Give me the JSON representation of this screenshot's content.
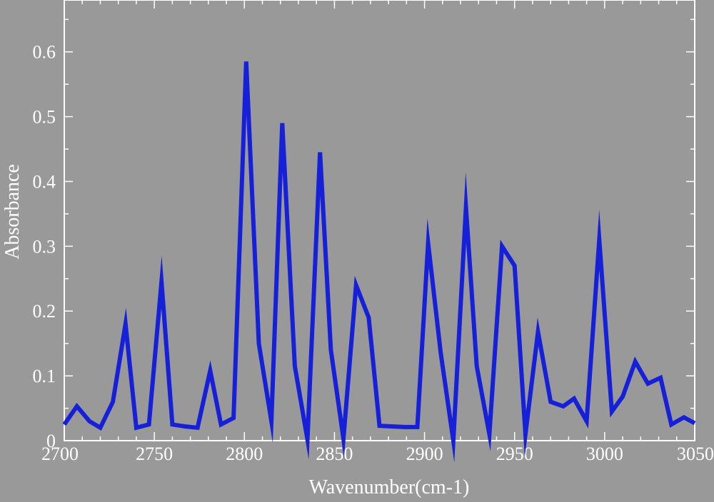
{
  "colors": {
    "background": "#999999",
    "axes": "#ffffff",
    "line": "#1620d8"
  },
  "chart_data": {
    "type": "line",
    "title": "",
    "xlabel": "Wavenumber(cm-1)",
    "ylabel": "Absorbance",
    "xlim": [
      2700,
      3050
    ],
    "ylim": [
      0,
      0.68
    ],
    "grid": false,
    "x_ticks": [
      2700,
      2750,
      2800,
      2850,
      2900,
      2950,
      3000,
      3050
    ],
    "y_ticks": [
      0,
      0.1,
      0.2,
      0.3,
      0.4,
      0.5,
      0.6
    ],
    "y_tick_labels": [
      "0",
      "0.1",
      "0.2",
      "0.3",
      "0.4",
      "0.5",
      "0.6"
    ],
    "series": [
      {
        "x": [
          2700,
          2707,
          2714,
          2720,
          2727,
          2734,
          2740,
          2747,
          2754,
          2760,
          2767,
          2774,
          2781,
          2787,
          2794,
          2801,
          2808,
          2815,
          2821,
          2828,
          2835,
          2842,
          2848,
          2855,
          2862,
          2869,
          2875,
          2882,
          2889,
          2896,
          2902,
          2909,
          2916,
          2923,
          2929,
          2936,
          2943,
          2950,
          2956,
          2963,
          2970,
          2977,
          2983,
          2990,
          2997,
          3004,
          3010,
          3017,
          3024,
          3031,
          3037,
          3044,
          3050
        ],
        "y": [
          0.025,
          0.053,
          0.03,
          0.02,
          0.06,
          0.18,
          0.02,
          0.025,
          0.245,
          0.025,
          0.022,
          0.02,
          0.108,
          0.025,
          0.035,
          0.585,
          0.15,
          0.03,
          0.49,
          0.115,
          0.002,
          0.445,
          0.14,
          0.003,
          0.24,
          0.19,
          0.023,
          0.022,
          0.021,
          0.021,
          0.305,
          0.135,
          0.0,
          0.36,
          0.115,
          0.01,
          0.3,
          0.27,
          0.01,
          0.168,
          0.06,
          0.053,
          0.065,
          0.03,
          0.31,
          0.045,
          0.068,
          0.122,
          0.088,
          0.097,
          0.025,
          0.036,
          0.027
        ]
      }
    ]
  }
}
